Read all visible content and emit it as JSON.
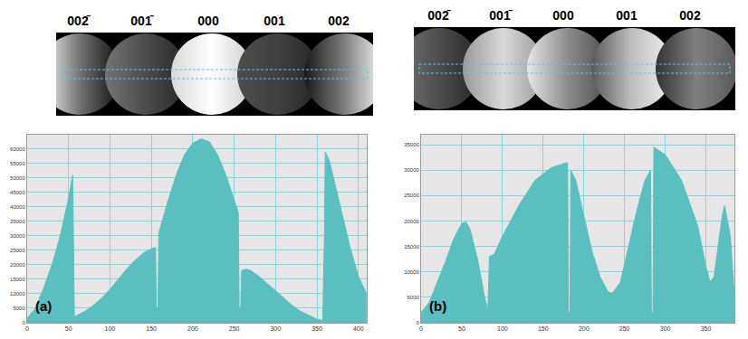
{
  "image_strips": [
    {
      "labels": [
        "002̄",
        "001̄",
        "000",
        "001",
        "002"
      ]
    },
    {
      "labels": [
        "002̄",
        "001̄",
        "000",
        "001",
        "002"
      ]
    }
  ],
  "chart_data": [
    {
      "type": "area",
      "color": "#5bbfbf",
      "grid": true,
      "annotations": [
        "(a)"
      ],
      "x": [
        0,
        10,
        20,
        30,
        40,
        50,
        55,
        56,
        57,
        60,
        70,
        80,
        90,
        100,
        110,
        120,
        130,
        140,
        150,
        155,
        156,
        158,
        159,
        165,
        170,
        180,
        190,
        200,
        210,
        220,
        230,
        240,
        250,
        255,
        256,
        258,
        259,
        265,
        270,
        280,
        290,
        300,
        310,
        320,
        330,
        340,
        350,
        357,
        359,
        360,
        365,
        370,
        380,
        390,
        400,
        410
      ],
      "values": [
        1500,
        5000,
        12000,
        20000,
        30000,
        43000,
        51000,
        30000,
        2000,
        2500,
        4000,
        6000,
        8500,
        11500,
        15000,
        18500,
        21500,
        24000,
        25500,
        26000,
        5000,
        5000,
        31000,
        37000,
        42000,
        51000,
        58000,
        62000,
        63500,
        62500,
        58000,
        51000,
        42000,
        38000,
        5000,
        5000,
        18000,
        18500,
        18000,
        16000,
        13500,
        11000,
        8500,
        6000,
        4000,
        2500,
        1200,
        800,
        30000,
        59000,
        56000,
        50000,
        38000,
        26000,
        16000,
        10000
      ],
      "xlim": [
        0,
        410
      ],
      "xticks": [
        0,
        50,
        100,
        150,
        200,
        250,
        300,
        350,
        400
      ],
      "ylim": [
        0,
        65000
      ],
      "yticks": [
        0,
        5000,
        10000,
        15000,
        20000,
        25000,
        30000,
        35000,
        40000,
        45000,
        50000,
        55000,
        60000
      ]
    },
    {
      "type": "area",
      "color": "#5bbfbf",
      "grid": true,
      "annotations": [
        "(b)"
      ],
      "x": [
        0,
        10,
        20,
        30,
        40,
        50,
        55,
        60,
        70,
        78,
        82,
        84,
        90,
        100,
        120,
        140,
        160,
        180,
        181,
        183,
        184,
        190,
        200,
        210,
        220,
        230,
        235,
        245,
        255,
        265,
        275,
        282,
        283,
        285,
        286,
        300,
        320,
        340,
        350,
        355,
        360,
        370,
        373,
        380,
        385
      ],
      "values": [
        2000,
        4000,
        8000,
        12000,
        16500,
        19500,
        19800,
        18500,
        12000,
        5000,
        2500,
        13000,
        13500,
        17000,
        23000,
        28000,
        30500,
        31500,
        2000,
        2000,
        30000,
        28000,
        21000,
        14000,
        9000,
        6000,
        5800,
        8000,
        15000,
        22000,
        28000,
        30000,
        2000,
        2000,
        34500,
        33000,
        28000,
        19000,
        11000,
        8000,
        9000,
        21000,
        23000,
        17000,
        5000
      ],
      "xlim": [
        0,
        385
      ],
      "xticks": [
        0,
        50,
        100,
        150,
        200,
        250,
        300,
        350
      ],
      "ylim": [
        0,
        37000
      ],
      "yticks": [
        0,
        5000,
        10000,
        15000,
        20000,
        25000,
        30000,
        35000
      ]
    }
  ]
}
